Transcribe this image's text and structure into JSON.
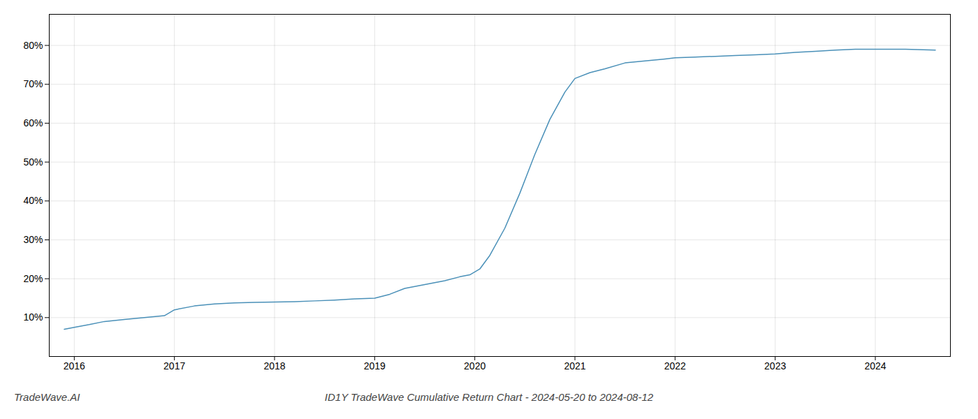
{
  "chart_data": {
    "type": "line",
    "title": "ID1Y TradeWave Cumulative Return Chart - 2024-05-20 to 2024-08-12",
    "annotations": [
      "TradeWave.AI"
    ],
    "x": [
      2015.9,
      2016.0,
      2016.15,
      2016.3,
      2016.5,
      2016.7,
      2016.9,
      2017.0,
      2017.2,
      2017.4,
      2017.6,
      2017.8,
      2018.0,
      2018.2,
      2018.4,
      2018.6,
      2018.8,
      2019.0,
      2019.15,
      2019.3,
      2019.5,
      2019.7,
      2019.85,
      2019.95,
      2020.05,
      2020.15,
      2020.3,
      2020.45,
      2020.6,
      2020.75,
      2020.9,
      2021.0,
      2021.15,
      2021.3,
      2021.5,
      2021.7,
      2021.9,
      2022.0,
      2022.2,
      2022.4,
      2022.6,
      2022.8,
      2023.0,
      2023.2,
      2023.4,
      2023.6,
      2023.8,
      2024.0,
      2024.3,
      2024.6
    ],
    "values": [
      7.0,
      7.5,
      8.2,
      9.0,
      9.5,
      10.0,
      10.5,
      12.0,
      13.0,
      13.5,
      13.8,
      13.9,
      14.0,
      14.1,
      14.3,
      14.5,
      14.8,
      15.0,
      16.0,
      17.5,
      18.5,
      19.5,
      20.5,
      21.0,
      22.5,
      26.0,
      33.0,
      42.0,
      52.0,
      61.0,
      68.0,
      71.5,
      73.0,
      74.0,
      75.5,
      76.0,
      76.5,
      76.8,
      77.0,
      77.2,
      77.4,
      77.6,
      77.8,
      78.2,
      78.5,
      78.8,
      79.0,
      79.0,
      79.0,
      78.8
    ],
    "color": "#4a90b8",
    "xlim": [
      2015.75,
      2024.75
    ],
    "xticks": [
      2016,
      2017,
      2018,
      2019,
      2020,
      2021,
      2022,
      2023,
      2024
    ],
    "ylim": [
      0,
      88
    ],
    "yticks": [
      {
        "value": 10,
        "label": "10%"
      },
      {
        "value": 20,
        "label": "20%"
      },
      {
        "value": 30,
        "label": "30%"
      },
      {
        "value": 40,
        "label": "40%"
      },
      {
        "value": 50,
        "label": "50%"
      },
      {
        "value": 60,
        "label": "60%"
      },
      {
        "value": 70,
        "label": "70%"
      },
      {
        "value": 80,
        "label": "80%"
      }
    ],
    "grid": true
  }
}
